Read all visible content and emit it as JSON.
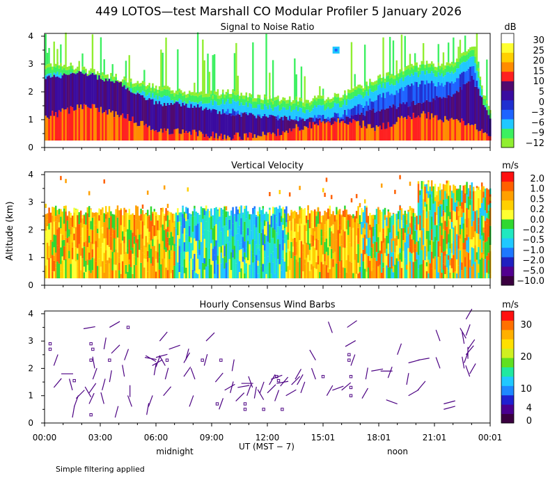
{
  "figure_title": "449 LOTOS—test Marshall CO Modular Profiler  5 January 2026",
  "footnote": "Simple filtering applied",
  "y_axis_label": "Altitude (km)",
  "x_axis": {
    "label": "UT  (MST − 7)",
    "ticks": [
      "00:00",
      "03:00",
      "06:00",
      "09:00",
      "12:00",
      "15:01",
      "18:01",
      "21:01",
      "00:01"
    ],
    "tick_hours": [
      0,
      3,
      6,
      9,
      12,
      15,
      18,
      21,
      24
    ],
    "midnight_label": "midnight",
    "noon_label": "noon",
    "range_hours": [
      0,
      24
    ]
  },
  "colors": {
    "snr_scale": [
      "#90ee30",
      "#3cf060",
      "#20c8ff",
      "#1e64ff",
      "#2030d0",
      "#3a0ba0",
      "#500a70",
      "#ff2020",
      "#ff8c00",
      "#ffd000",
      "#ffff30",
      "#ffffff"
    ],
    "velocity_scale": [
      "#3a0040",
      "#520090",
      "#2020c0",
      "#1e78ff",
      "#20c8ff",
      "#20e8c0",
      "#30d830",
      "#ffff30",
      "#ffd000",
      "#ffa000",
      "#ff6000",
      "#ff1010"
    ],
    "wind_scale": [
      "#3a0040",
      "#4a0090",
      "#2020d0",
      "#1e88ff",
      "#20c8ff",
      "#20e8a0",
      "#60e020",
      "#d0f020",
      "#ffe000",
      "#ffb000",
      "#ff7000",
      "#ff1010"
    ],
    "barb": "#4b0082"
  },
  "chart_data": [
    {
      "type": "heatmap",
      "title": "Signal to Noise Ratio",
      "units": "dB",
      "colorbar_ticks": [
        "30",
        "25",
        "20",
        "15",
        "10",
        "5",
        "0",
        "−3",
        "−6",
        "−9",
        "−12"
      ],
      "x": "time (UT hours 0–24)",
      "y": "altitude (km)",
      "ylim": [
        0,
        4.1
      ],
      "yticks": [
        "0",
        "1",
        "2",
        "3",
        "4"
      ],
      "ytick_values": [
        0,
        1,
        2,
        3,
        4
      ],
      "data_floor_km": 0.25,
      "top_height_km": [
        [
          0,
          2.9
        ],
        [
          1,
          3.0
        ],
        [
          2,
          2.8
        ],
        [
          4,
          2.5
        ],
        [
          6,
          2.2
        ],
        [
          8,
          1.9
        ],
        [
          10,
          2.0
        ],
        [
          12,
          1.8
        ],
        [
          14,
          1.7
        ],
        [
          16,
          1.9
        ],
        [
          18,
          2.5
        ],
        [
          20,
          3.0
        ],
        [
          22,
          3.0
        ],
        [
          23,
          3.7
        ],
        [
          23.6,
          2.0
        ],
        [
          24,
          1.2
        ]
      ],
      "snr_5dB_top_km": [
        [
          0,
          2.5
        ],
        [
          2,
          2.7
        ],
        [
          4,
          2.3
        ],
        [
          6,
          1.6
        ],
        [
          8,
          1.5
        ],
        [
          10,
          1.2
        ],
        [
          12,
          1.1
        ],
        [
          14,
          1.0
        ],
        [
          16,
          1.0
        ],
        [
          17,
          1.2
        ],
        [
          18,
          1.4
        ],
        [
          20,
          1.6
        ],
        [
          22,
          1.9
        ],
        [
          23,
          2.5
        ],
        [
          24,
          1.0
        ]
      ],
      "snr_10dB_top_km": [
        [
          0,
          1.1
        ],
        [
          2,
          1.5
        ],
        [
          4,
          1.2
        ],
        [
          6,
          0.6
        ],
        [
          8,
          0.5
        ],
        [
          10,
          0.4
        ],
        [
          12,
          0.45
        ],
        [
          14,
          0.8
        ],
        [
          16,
          1.0
        ],
        [
          18,
          0.7
        ],
        [
          20,
          1.2
        ],
        [
          22,
          1.0
        ],
        [
          23,
          0.9
        ],
        [
          24,
          0.3
        ]
      ],
      "isolated_echo": {
        "time_hr": 15.7,
        "alt_km": 3.5
      }
    },
    {
      "type": "heatmap",
      "title": "Vertical Velocity",
      "units": "m/s",
      "colorbar_ticks": [
        "2.0",
        "1.0",
        "0.5",
        "0.2",
        "0.0",
        "−0.2",
        "−0.5",
        "−1.0",
        "−2.0",
        "−5.0",
        "−10.0"
      ],
      "x": "time (UT hours 0–24)",
      "y": "altitude (km)",
      "ylim": [
        0,
        4.1
      ],
      "yticks": [
        "0",
        "1",
        "2",
        "3",
        "4"
      ],
      "ytick_values": [
        0,
        1,
        2,
        3,
        4
      ],
      "regimes": [
        {
          "from_hr": 0,
          "to_hr": 7,
          "dominant": "updraft",
          "note": "mostly +0.2 to +1.0 m/s (yellow/orange)"
        },
        {
          "from_hr": 7,
          "to_hr": 13,
          "dominant": "downdraft",
          "note": "mostly −0.2 to −1.0 m/s (green/cyan/blue)"
        },
        {
          "from_hr": 13,
          "to_hr": 17,
          "dominant": "updraft",
          "note": "orange up to ~2.5 km"
        },
        {
          "from_hr": 17,
          "to_hr": 24,
          "dominant": "mixed",
          "note": "mixed green/orange, tops to ~4 km after 20:00"
        }
      ]
    },
    {
      "type": "scatter",
      "title": "Hourly Consensus Wind Barbs",
      "units": "m/s",
      "colorbar_ticks": [
        "30",
        "20",
        "10",
        "4",
        "0"
      ],
      "colorbar_tick_values": [
        30,
        20,
        10,
        4,
        0
      ],
      "colorbar_range": [
        0,
        35
      ],
      "x": "time (UT hours 0–24)",
      "y": "altitude (km)",
      "ylim": [
        0,
        4.1
      ],
      "yticks": [
        "0",
        "1",
        "2",
        "3",
        "4"
      ],
      "ytick_values": [
        0,
        1,
        2,
        3,
        4
      ],
      "barbs": [
        [
          0.3,
          2.9,
          0,
          0
        ],
        [
          0.3,
          2.7,
          0,
          0
        ],
        [
          0.5,
          1.3,
          40,
          2
        ],
        [
          0.5,
          2.1,
          20,
          2
        ],
        [
          0.9,
          1.8,
          90,
          2
        ],
        [
          1.5,
          0.2,
          10,
          2
        ],
        [
          1.5,
          1.2,
          345,
          2
        ],
        [
          1.6,
          0.6,
          20,
          2
        ],
        [
          1.7,
          0.9,
          45,
          2
        ],
        [
          1.6,
          1.55,
          0,
          0
        ],
        [
          2.1,
          3.45,
          80,
          2
        ],
        [
          2.4,
          0.7,
          25,
          2
        ],
        [
          2.4,
          1.1,
          35,
          2
        ],
        [
          2.5,
          0.95,
          330,
          2
        ],
        [
          2.5,
          0.3,
          0,
          0
        ],
        [
          2.5,
          2.9,
          0,
          0
        ],
        [
          2.6,
          2.7,
          0,
          0
        ],
        [
          2.5,
          2.3,
          0,
          0
        ],
        [
          2.6,
          1.6,
          20,
          2
        ],
        [
          2.7,
          2.0,
          350,
          2
        ],
        [
          3.2,
          2.7,
          10,
          2
        ],
        [
          3.1,
          1.2,
          15,
          2
        ],
        [
          3.2,
          0.7,
          345,
          2
        ],
        [
          3.5,
          1.5,
          10,
          2
        ],
        [
          3.5,
          2.3,
          0,
          0
        ],
        [
          3.6,
          2.55,
          45,
          2
        ],
        [
          3.5,
          3.5,
          60,
          2
        ],
        [
          3.8,
          0.2,
          15,
          2
        ],
        [
          4.3,
          1.7,
          350,
          2
        ],
        [
          4.3,
          2.3,
          20,
          2
        ],
        [
          4.5,
          3.5,
          0,
          0
        ],
        [
          4.6,
          0.95,
          0,
          2
        ],
        [
          4.7,
          0.6,
          340,
          2
        ],
        [
          5.4,
          2.4,
          100,
          2
        ],
        [
          5.5,
          0.3,
          10,
          2
        ],
        [
          5.6,
          0.6,
          20,
          2
        ],
        [
          5.9,
          1.75,
          10,
          2
        ],
        [
          5.8,
          2.1,
          60,
          2
        ],
        [
          6.0,
          2.4,
          75,
          2
        ],
        [
          6.0,
          2.25,
          300,
          2
        ],
        [
          6.0,
          2.05,
          20,
          2
        ],
        [
          6.2,
          3.0,
          40,
          2
        ],
        [
          6.4,
          1.0,
          40,
          2
        ],
        [
          6.5,
          1.6,
          15,
          2
        ],
        [
          6.5,
          2.1,
          330,
          2
        ],
        [
          6.6,
          2.3,
          0,
          0
        ],
        [
          6.7,
          2.7,
          70,
          2
        ],
        [
          7.5,
          2.2,
          30,
          2
        ],
        [
          7.5,
          1.7,
          35,
          2
        ],
        [
          7.6,
          2.3,
          15,
          2
        ],
        [
          7.8,
          0.6,
          20,
          2
        ],
        [
          8.1,
          1.6,
          340,
          2
        ],
        [
          8.5,
          2.3,
          0,
          0
        ],
        [
          8.6,
          2.1,
          15,
          2
        ],
        [
          8.7,
          3.0,
          45,
          2
        ],
        [
          9.2,
          1.5,
          40,
          2
        ],
        [
          9.3,
          0.7,
          0,
          0
        ],
        [
          9.4,
          0.5,
          20,
          2
        ],
        [
          9.5,
          2.3,
          0,
          0
        ],
        [
          9.7,
          1.2,
          60,
          2
        ],
        [
          10.0,
          1.1,
          15,
          2
        ],
        [
          10.1,
          1.9,
          10,
          2
        ],
        [
          10.3,
          0.8,
          45,
          2
        ],
        [
          10.4,
          1.3,
          80,
          2
        ],
        [
          10.6,
          1.45,
          90,
          2
        ],
        [
          10.8,
          0.7,
          0,
          0
        ],
        [
          10.8,
          0.5,
          0,
          0
        ],
        [
          10.9,
          1.0,
          20,
          2
        ],
        [
          11.2,
          1.3,
          340,
          2
        ],
        [
          11.3,
          0.9,
          10,
          2
        ],
        [
          11.6,
          1.1,
          20,
          2
        ],
        [
          11.8,
          0.5,
          0,
          0
        ],
        [
          11.8,
          0.85,
          330,
          2
        ],
        [
          12.0,
          1.1,
          45,
          2
        ],
        [
          12.1,
          1.4,
          30,
          2
        ],
        [
          12.2,
          1.6,
          70,
          2
        ],
        [
          12.4,
          0.8,
          20,
          2
        ],
        [
          12.5,
          1.45,
          80,
          2
        ],
        [
          12.5,
          1.7,
          0,
          0
        ],
        [
          12.6,
          1.55,
          0,
          0
        ],
        [
          12.7,
          1.35,
          40,
          2
        ],
        [
          12.8,
          0.5,
          0,
          0
        ],
        [
          13.0,
          1.0,
          60,
          2
        ],
        [
          13.3,
          1.4,
          45,
          2
        ],
        [
          13.5,
          1.6,
          30,
          2
        ],
        [
          13.6,
          1.4,
          30,
          2
        ],
        [
          13.8,
          1.1,
          20,
          2
        ],
        [
          14.6,
          2.3,
          330,
          2
        ],
        [
          14.6,
          1.6,
          340,
          2
        ],
        [
          15.0,
          1.7,
          0,
          0
        ],
        [
          15.2,
          1.0,
          30,
          2
        ],
        [
          15.5,
          3.3,
          340,
          2
        ],
        [
          15.5,
          1.2,
          70,
          2
        ],
        [
          16.0,
          1.2,
          50,
          2
        ],
        [
          16.2,
          2.8,
          60,
          2
        ],
        [
          16.3,
          3.5,
          55,
          2
        ],
        [
          16.4,
          2.5,
          0,
          0
        ],
        [
          16.4,
          2.3,
          0,
          0
        ],
        [
          16.5,
          1.7,
          0,
          0
        ],
        [
          16.5,
          1.3,
          0,
          0
        ],
        [
          16.5,
          1.0,
          0,
          0
        ],
        [
          16.5,
          2.1,
          20,
          2
        ],
        [
          17.1,
          0.9,
          30,
          2
        ],
        [
          17.3,
          1.6,
          10,
          2
        ],
        [
          17.6,
          1.9,
          80,
          2
        ],
        [
          18.1,
          1.9,
          90,
          2
        ],
        [
          18.5,
          1.65,
          20,
          2
        ],
        [
          19.0,
          2.5,
          20,
          2
        ],
        [
          19.0,
          0.7,
          290,
          2
        ],
        [
          19.5,
          1.4,
          10,
          2
        ],
        [
          19.6,
          1.0,
          60,
          2
        ],
        [
          19.6,
          2.2,
          75,
          2
        ],
        [
          20.1,
          1.2,
          40,
          2
        ],
        [
          20.1,
          2.3,
          80,
          2
        ],
        [
          21.5,
          0.7,
          75,
          2
        ],
        [
          21.5,
          0.5,
          75,
          2
        ],
        [
          21.3,
          2.0,
          340,
          2
        ],
        [
          21.3,
          3.0,
          340,
          2
        ],
        [
          22.6,
          2.2,
          20,
          2
        ],
        [
          22.6,
          2.0,
          350,
          2
        ],
        [
          22.7,
          3.2,
          20,
          2
        ],
        [
          22.7,
          3.8,
          30,
          2
        ],
        [
          22.6,
          2.9,
          350,
          2
        ],
        [
          22.8,
          2.7,
          35,
          2
        ],
        [
          22.9,
          1.8,
          30,
          2
        ],
        [
          22.9,
          1.7,
          340,
          2
        ],
        [
          22.7,
          2.5,
          40,
          2
        ],
        [
          22.7,
          3.1,
          330,
          2
        ],
        [
          22.8,
          2.35,
          0,
          2
        ]
      ]
    }
  ]
}
